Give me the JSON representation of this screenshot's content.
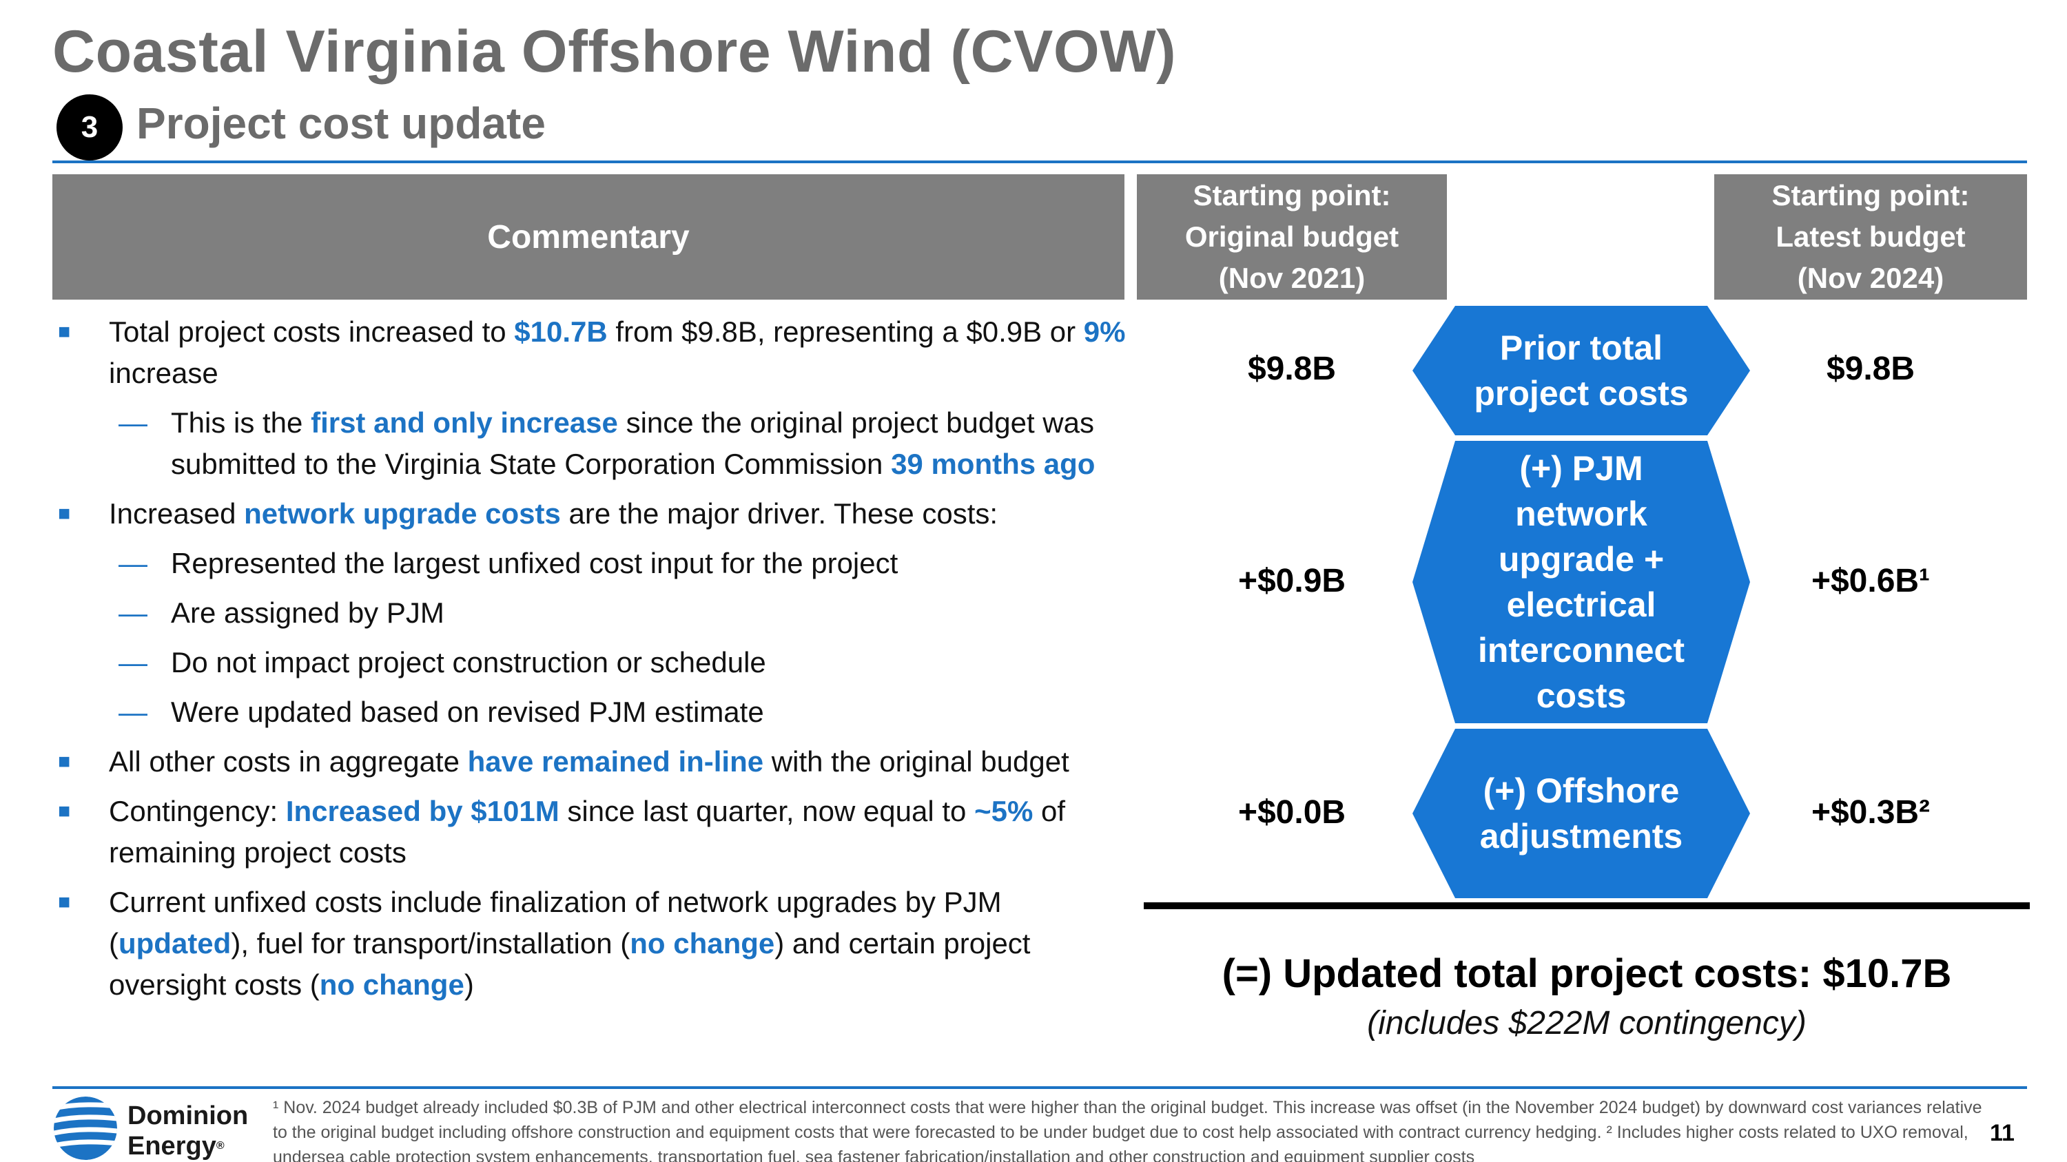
{
  "title": "Coastal Virginia Offshore Wind (CVOW)",
  "section_number": "3",
  "subtitle": "Project cost update",
  "headers": {
    "commentary": "Commentary",
    "original": [
      "Starting point:",
      "Original budget",
      "(Nov 2021)"
    ],
    "latest": [
      "Starting point:",
      "Latest budget",
      "(Nov 2024)"
    ]
  },
  "commentary": [
    {
      "level": 1,
      "parts": [
        {
          "t": "Total project costs increased to ",
          "h": false
        },
        {
          "t": "$10.7B",
          "h": true
        },
        {
          "t": " from $9.8B, representing a $0.9B or ",
          "h": false
        },
        {
          "t": "9%",
          "h": true
        },
        {
          "t": " increase",
          "h": false
        }
      ]
    },
    {
      "level": 2,
      "parts": [
        {
          "t": "This is the ",
          "h": false
        },
        {
          "t": "first and only increase",
          "h": true
        },
        {
          "t": " since the original project budget was submitted to the Virginia State Corporation Commission ",
          "h": false
        },
        {
          "t": "39 months ago",
          "h": true
        }
      ]
    },
    {
      "level": 1,
      "parts": [
        {
          "t": "Increased ",
          "h": false
        },
        {
          "t": "network upgrade costs",
          "h": true
        },
        {
          "t": " are the major driver.  These costs:",
          "h": false
        }
      ]
    },
    {
      "level": 2,
      "parts": [
        {
          "t": "Represented the largest unfixed cost input for the project",
          "h": false
        }
      ]
    },
    {
      "level": 2,
      "parts": [
        {
          "t": "Are assigned by PJM",
          "h": false
        }
      ]
    },
    {
      "level": 2,
      "parts": [
        {
          "t": "Do not impact project construction or schedule",
          "h": false
        }
      ]
    },
    {
      "level": 2,
      "parts": [
        {
          "t": "Were updated based on revised PJM estimate",
          "h": false
        }
      ]
    },
    {
      "level": 1,
      "parts": [
        {
          "t": "All other costs in aggregate ",
          "h": false
        },
        {
          "t": "have remained in-line",
          "h": true
        },
        {
          "t": " with the original budget",
          "h": false
        }
      ]
    },
    {
      "level": 1,
      "parts": [
        {
          "t": "Contingency: ",
          "h": false
        },
        {
          "t": "Increased by $101M",
          "h": true
        },
        {
          "t": " since last quarter, now equal to ",
          "h": false
        },
        {
          "t": "~5%",
          "h": true
        },
        {
          "t": " of remaining project costs",
          "h": false
        }
      ]
    },
    {
      "level": 1,
      "parts": [
        {
          "t": "Current unfixed costs include finalization of network upgrades by PJM (",
          "h": false
        },
        {
          "t": "updated",
          "h": true
        },
        {
          "t": "), fuel for transport/installation (",
          "h": false
        },
        {
          "t": "no change",
          "h": true
        },
        {
          "t": ") and certain project oversight costs (",
          "h": false
        },
        {
          "t": "no change",
          "h": true
        },
        {
          "t": ")",
          "h": false
        }
      ]
    }
  ],
  "rows": [
    {
      "label": [
        "Prior total",
        "project costs"
      ],
      "original": "$9.8B",
      "latest": "$9.8B"
    },
    {
      "label": [
        "(+) PJM",
        "network",
        "upgrade +",
        "electrical",
        "interconnect",
        "costs"
      ],
      "original": "+$0.9B",
      "latest": "+$0.6B¹"
    },
    {
      "label": [
        "(+) Offshore",
        "adjustments"
      ],
      "original": "+$0.0B",
      "latest": "+$0.3B²"
    }
  ],
  "total": "(=) Updated total project costs: $10.7B",
  "total_note": "(includes $222M contingency)",
  "logo": [
    "Dominion",
    "Energy"
  ],
  "logo_mark": "®",
  "footnote": "¹ Nov. 2024 budget already included $0.3B of PJM and other electrical interconnect costs that were higher than the original budget. This increase was offset (in the November 2024 budget) by downward cost variances relative to the original budget including offshore construction and equipment costs that were forecasted to be under budget due to cost help associated with contract currency hedging. ² Includes higher costs related to UXO removal, undersea cable protection system enhancements, transportation fuel, sea fastener fabrication/installation and other construction and equipment supplier costs",
  "page_number": "11",
  "colors": {
    "accent": "#1c73c4",
    "box": "#1877d4",
    "header_gray": "#7f7f7f",
    "title_gray": "#6b6b6b"
  }
}
